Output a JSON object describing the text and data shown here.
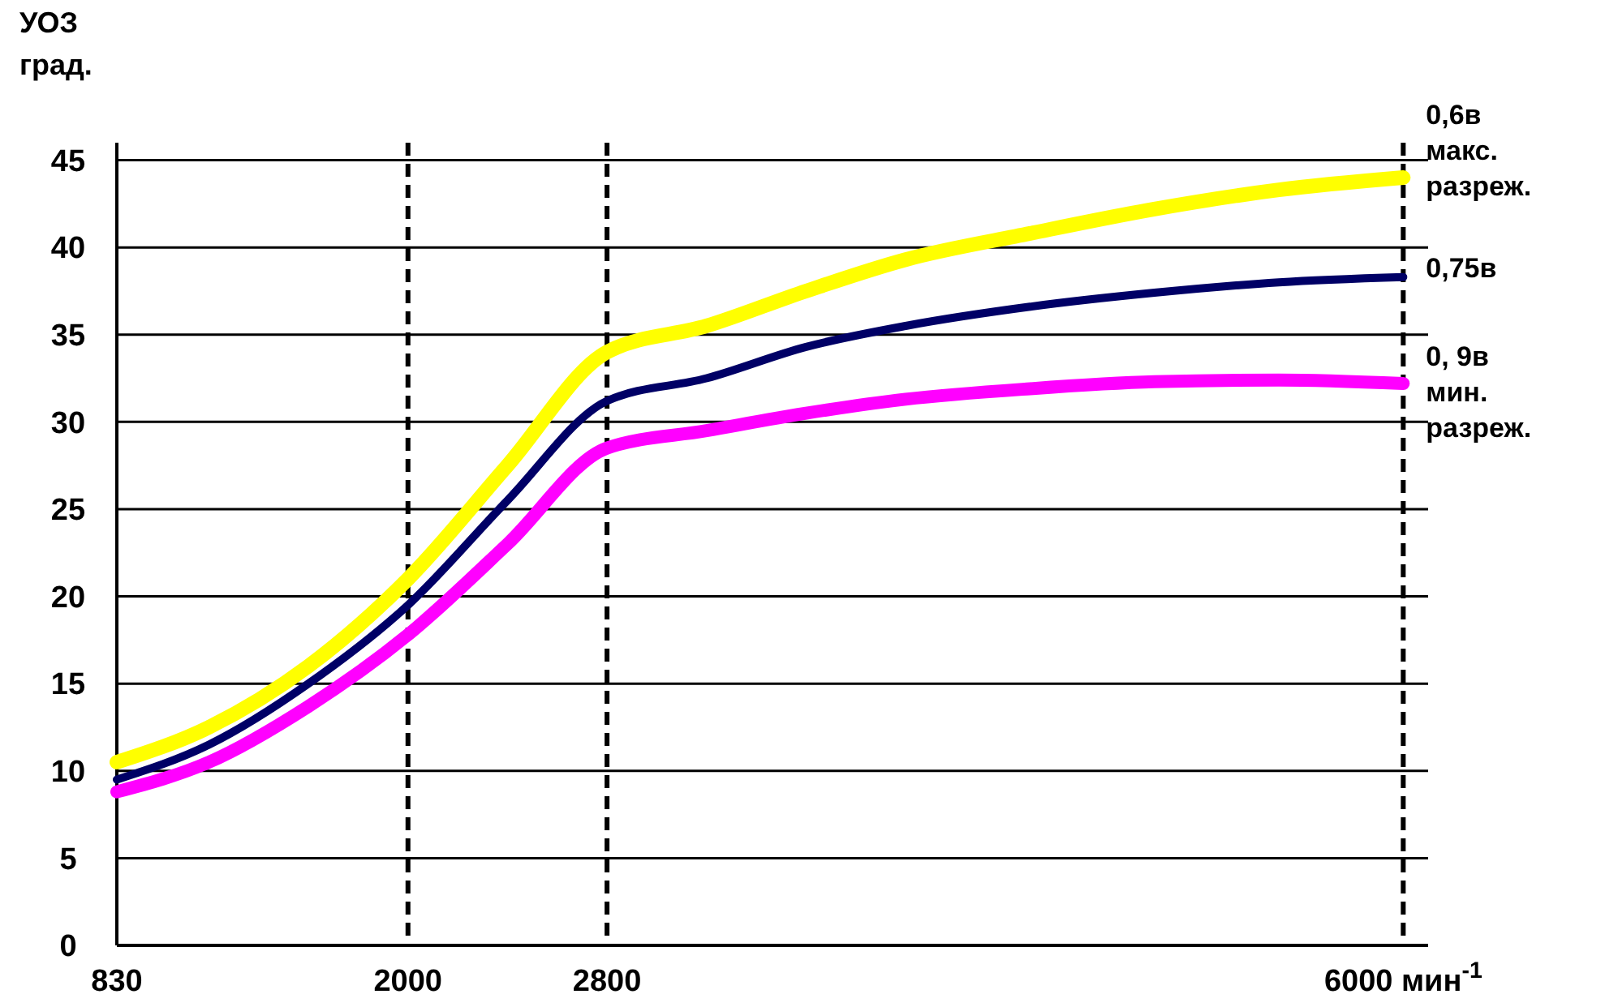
{
  "chart_data": {
    "type": "line",
    "ylabel": "УОЗ\nград.",
    "xlim": [
      830,
      6100
    ],
    "xticks": [
      830,
      2000,
      2800,
      {
        "value": 6000,
        "label": "6000 мин$^{-1}$"
      }
    ],
    "ylim": [
      0,
      46
    ],
    "yticks": [
      0,
      5,
      10,
      15,
      20,
      25,
      30,
      35,
      40,
      45
    ],
    "grid": "y",
    "legend": false,
    "line_style": "solid",
    "x": [
      830,
      1200,
      1600,
      2000,
      2400,
      2800,
      3200,
      3600,
      4000,
      4500,
      5000,
      5500,
      6000
    ],
    "series": [
      {
        "name": "0,6в\nмакс.\nразреж.",
        "color": "#ffff00",
        "values": [
          10.5,
          12.5,
          16,
          21,
          27.5,
          34,
          35.5,
          37.5,
          39.3,
          40.8,
          42.2,
          43.3,
          44
        ]
      },
      {
        "name": "0,75в",
        "color": "#000066",
        "values": [
          9.5,
          11.5,
          15,
          19.5,
          25.5,
          31.2,
          32.5,
          34.3,
          35.5,
          36.6,
          37.4,
          38,
          38.3
        ]
      },
      {
        "name": "0, 9в\nмин.\nразреж.",
        "color": "#ff00ff",
        "values": [
          8.8,
          10.5,
          13.7,
          17.8,
          23,
          28.5,
          29.5,
          30.5,
          31.3,
          31.9,
          32.3,
          32.4,
          32.2
        ]
      }
    ],
    "ref_lines": [
      {
        "axis": "x",
        "value": 2000,
        "line_style": "dashed"
      },
      {
        "axis": "x",
        "value": 2800,
        "line_style": "dashed"
      },
      {
        "axis": "x",
        "value": 6000,
        "line_style": "dashed"
      }
    ]
  }
}
